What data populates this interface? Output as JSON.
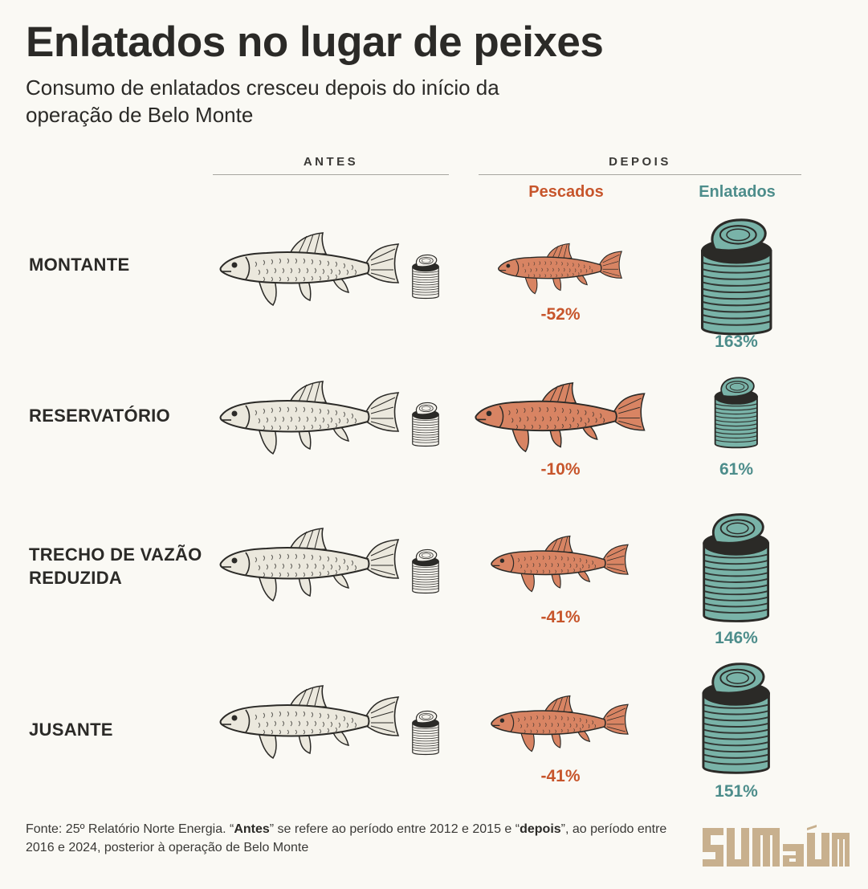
{
  "title": "Enlatados no lugar de peixes",
  "subtitle": "Consumo de enlatados cresceu depois do início da operação de Belo Monte",
  "header": {
    "antes": "ANTES",
    "depois": "DEPOIS",
    "pescados": "Pescados",
    "enlatados": "Enlatados"
  },
  "colors": {
    "fish_before": "#ebe8dd",
    "fish_after": "#d88463",
    "can_before": "#f4f2ec",
    "can_after": "#79b3a8",
    "pescados_text": "#c7552b",
    "enlatados_text": "#4d8d8b",
    "logo": "#c8b08e"
  },
  "chart_data": {
    "type": "table",
    "title": "Enlatados no lugar de peixes",
    "subtitle": "Consumo de enlatados cresceu depois do início da operação de Belo Monte",
    "series": [
      {
        "name": "Pescados",
        "values": [
          -52,
          -10,
          -41,
          -41
        ]
      },
      {
        "name": "Enlatados",
        "values": [
          163,
          61,
          146,
          151
        ]
      }
    ],
    "categories": [
      "MONTANTE",
      "RESERVATÓRIO",
      "TRECHO DE VAZÃO REDUZIDA",
      "JUSANTE"
    ],
    "rows": [
      {
        "region": "MONTANTE",
        "pescados": -52,
        "pescados_label": "-52%",
        "enlatados": 163,
        "enlatados_label": "163%"
      },
      {
        "region": "RESERVATÓRIO",
        "pescados": -10,
        "pescados_label": "-10%",
        "enlatados": 61,
        "enlatados_label": "61%"
      },
      {
        "region": "TRECHO DE VAZÃO REDUZIDA",
        "pescados": -41,
        "pescados_label": "-41%",
        "enlatados": 146,
        "enlatados_label": "146%"
      },
      {
        "region": "JUSANTE",
        "pescados": -41,
        "pescados_label": "-41%",
        "enlatados": 151,
        "enlatados_label": "151%"
      }
    ]
  },
  "source": {
    "prefix": "Fonte: 25º Relatório Norte Energia. “",
    "antes_word": "Antes",
    "middle": "” se refere ao período entre 2012 e 2015 e “",
    "depois_word": "depois",
    "suffix": "”, ao período entre 2016 e 2024, posterior à operação de Belo Monte"
  },
  "logo_text": "SUMAÚMA"
}
